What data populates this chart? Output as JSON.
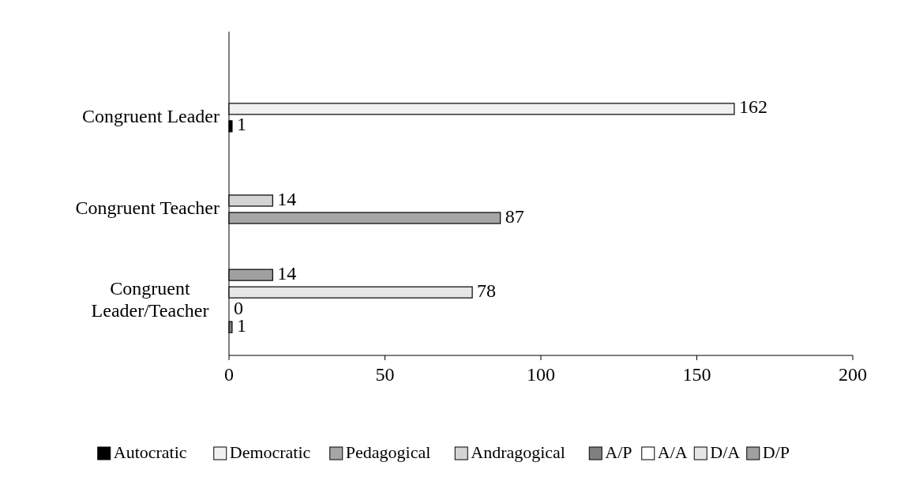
{
  "chart_data": {
    "type": "bar",
    "orientation": "horizontal",
    "categories": [
      "Congruent Leader",
      "Congruent Teacher",
      "Congruent Leader/Teacher"
    ],
    "series": [
      {
        "name": "Autocratic",
        "color": "#000000",
        "values": [
          1,
          null,
          null
        ]
      },
      {
        "name": "Democratic",
        "color": "#f0f0f0",
        "values": [
          162,
          null,
          null
        ]
      },
      {
        "name": "Pedagogical",
        "color": "#a6a6a6",
        "values": [
          null,
          87,
          null
        ]
      },
      {
        "name": "Andragogical",
        "color": "#d4d4d4",
        "values": [
          null,
          14,
          null
        ]
      },
      {
        "name": "A/P",
        "color": "#808080",
        "values": [
          null,
          null,
          1
        ]
      },
      {
        "name": "A/A",
        "color": "#ffffff",
        "values": [
          null,
          null,
          0
        ]
      },
      {
        "name": "D/A",
        "color": "#e6e6e6",
        "values": [
          null,
          null,
          78
        ]
      },
      {
        "name": "D/P",
        "color": "#a0a0a0",
        "values": [
          null,
          null,
          14
        ]
      }
    ],
    "xlim": [
      0,
      200
    ],
    "xticks": [
      0,
      50,
      100,
      150,
      200
    ],
    "data_labels": true,
    "legend": "bottom",
    "grid": false
  }
}
